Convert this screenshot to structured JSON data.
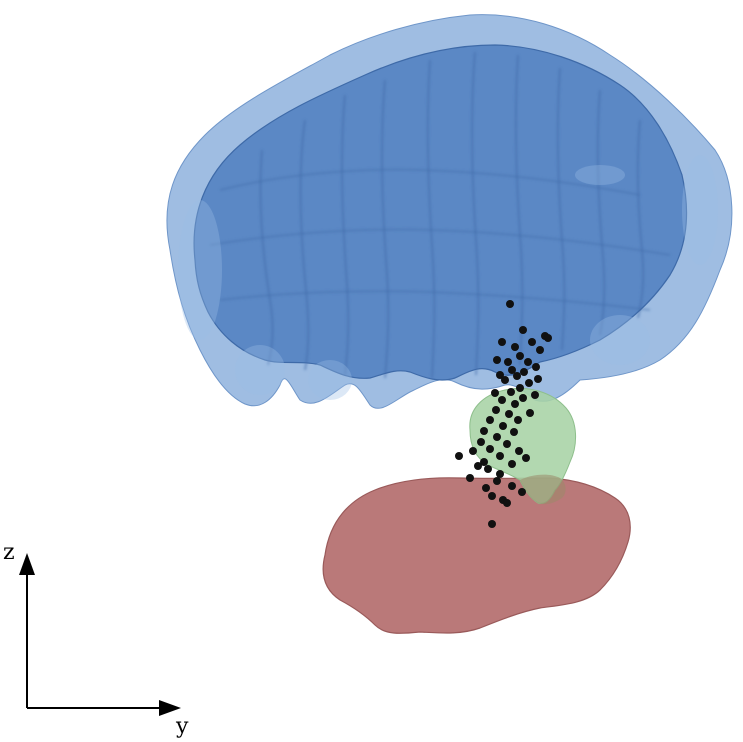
{
  "colors": {
    "background": "#ffffff",
    "blue_outer": "#7fa7d8",
    "blue_inner": "#4f7fc0",
    "blue_edge": "#3e6aa8",
    "green": "#a7d3a5",
    "red": "#b46e6e",
    "red_edge": "#9a5a5a",
    "points": "#111111",
    "axis": "#000000"
  },
  "axes": {
    "vertical_label": "z",
    "horizontal_label": "y"
  },
  "structures": {
    "top": {
      "name": "blue-structure",
      "color": "blue"
    },
    "middle": {
      "name": "green-structure",
      "color": "green"
    },
    "bottom": {
      "name": "red-structure",
      "color": "red"
    }
  },
  "point_cloud": {
    "count": 58,
    "color": "black"
  }
}
